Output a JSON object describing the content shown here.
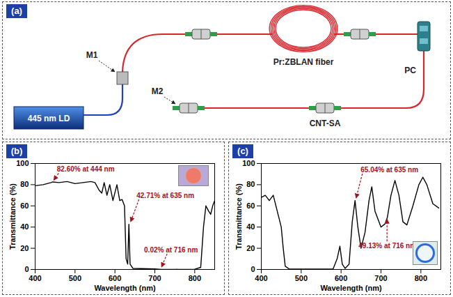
{
  "diagram": {
    "panel": "(a)",
    "nodes": [
      {
        "label": "445 nm LD"
      },
      {
        "label": "M1"
      },
      {
        "label": "Pr:ZBLAN fiber"
      },
      {
        "label": "PC"
      },
      {
        "label": "CNT-SA"
      },
      {
        "label": "M2"
      }
    ]
  },
  "chart_data": [
    {
      "type": "line",
      "panel": "(b)",
      "xlabel": "Wavelength (nm)",
      "ylabel": "Transmittance (%)",
      "x": [
        400,
        420,
        440,
        444,
        460,
        480,
        500,
        520,
        540,
        550,
        560,
        567,
        573,
        580,
        587,
        595,
        605,
        612,
        618,
        624,
        628,
        632,
        635,
        638,
        645,
        700,
        716,
        750,
        800,
        815,
        822,
        828,
        835,
        840,
        845,
        850
      ],
      "values": [
        79,
        80,
        82,
        82.6,
        82,
        83,
        81,
        82,
        83,
        82,
        75,
        72,
        82,
        70,
        80,
        65,
        80,
        65,
        66,
        60,
        10,
        5,
        42.71,
        5,
        1,
        0.5,
        0.02,
        0.1,
        0.2,
        2,
        40,
        60,
        55,
        52,
        60,
        65
      ],
      "color": "#000000",
      "xlim": [
        400,
        850
      ],
      "xticks": [
        400,
        500,
        600,
        700,
        800
      ],
      "ylim": [
        0,
        100
      ],
      "yticks": [
        0,
        20,
        40,
        60,
        80,
        100
      ],
      "grid": false,
      "annotations": [
        {
          "text": "82.60% at 444 nm",
          "x": 444,
          "y": 82.6
        },
        {
          "text": "42.71% at 635 nm",
          "x": 635,
          "y": 42.71
        },
        {
          "text": "0.02% at 716 nm",
          "x": 716,
          "y": 0.02
        }
      ]
    },
    {
      "type": "line",
      "panel": "(c)",
      "xlabel": "Wavelength (nm)",
      "ylabel": "Transmittance (%)",
      "x": [
        400,
        410,
        420,
        430,
        440,
        450,
        455,
        460,
        470,
        500,
        550,
        580,
        590,
        597,
        603,
        610,
        620,
        628,
        635,
        642,
        650,
        660,
        670,
        677,
        685,
        700,
        710,
        716,
        725,
        735,
        745,
        755,
        765,
        780,
        795,
        805,
        815,
        830,
        845
      ],
      "values": [
        68,
        70,
        65,
        70,
        55,
        40,
        20,
        3,
        0.5,
        0.3,
        0.3,
        0.5,
        10,
        22,
        5,
        1,
        5,
        45,
        65.04,
        40,
        20,
        35,
        65,
        78,
        55,
        40,
        43,
        49.13,
        70,
        84,
        70,
        45,
        42,
        60,
        80,
        87,
        80,
        62,
        58
      ],
      "color": "#000000",
      "xlim": [
        400,
        850
      ],
      "xticks": [
        400,
        500,
        600,
        700,
        800
      ],
      "ylim": [
        0,
        100
      ],
      "yticks": [
        0,
        20,
        40,
        60,
        80,
        100
      ],
      "grid": false,
      "annotations": [
        {
          "text": "65.04% at 635 nm",
          "x": 635,
          "y": 65.04
        },
        {
          "text": "49.13% at 716 nm",
          "x": 716,
          "y": 49.13
        }
      ]
    }
  ]
}
